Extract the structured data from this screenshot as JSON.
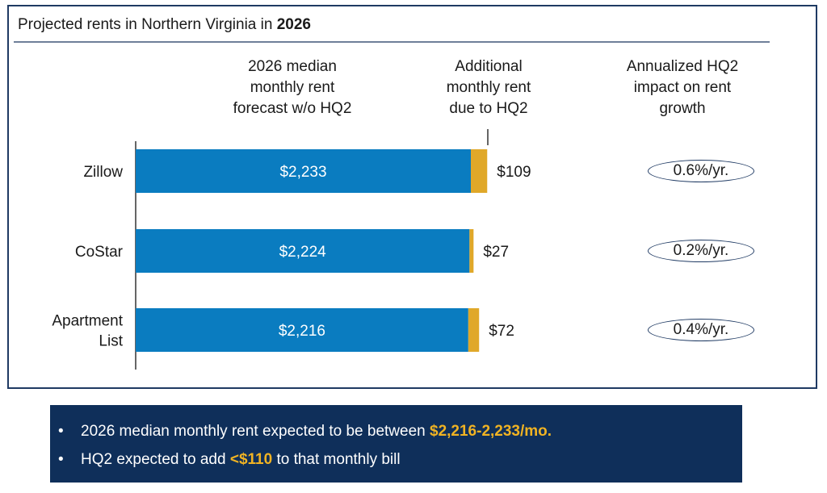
{
  "title": {
    "prefix": "Projected rents in Northern Virginia in ",
    "year": "2026"
  },
  "columns": {
    "base": [
      "2026 median",
      "monthly rent",
      "forecast w/o HQ2"
    ],
    "additional": [
      "Additional",
      "monthly rent",
      "due to HQ2"
    ],
    "impact": [
      "Annualized HQ2",
      "impact on rent",
      "growth"
    ]
  },
  "colors": {
    "base": "#0a7cc0",
    "additional": "#e0a829",
    "frame": "#1f3a63",
    "summary_bg": "#0f2f5a",
    "highlight": "#f0b323"
  },
  "chart_data": {
    "type": "bar",
    "stacked": true,
    "orientation": "horizontal",
    "categories": [
      "Zillow",
      "CoStar",
      "Apartment List"
    ],
    "category_lines": [
      [
        "Zillow"
      ],
      [
        "CoStar"
      ],
      [
        "Apartment",
        "List"
      ]
    ],
    "series": [
      {
        "values": [
          2233,
          2224,
          2216
        ],
        "labels": [
          "$2,233",
          "$2,224",
          "$2,216"
        ]
      },
      {
        "values": [
          109,
          27,
          72
        ],
        "labels": [
          "$109",
          "$27",
          "$72"
        ]
      }
    ],
    "impact": [
      "0.6%/yr.",
      "0.2%/yr.",
      "0.4%/yr."
    ]
  },
  "summary": [
    {
      "text": "2026 median monthly rent expected to be between ",
      "highlight": "$2,216-2,233/mo.",
      "after": ""
    },
    {
      "text": "HQ2 expected to add ",
      "highlight": "<$110",
      "after": " to that monthly bill"
    }
  ]
}
